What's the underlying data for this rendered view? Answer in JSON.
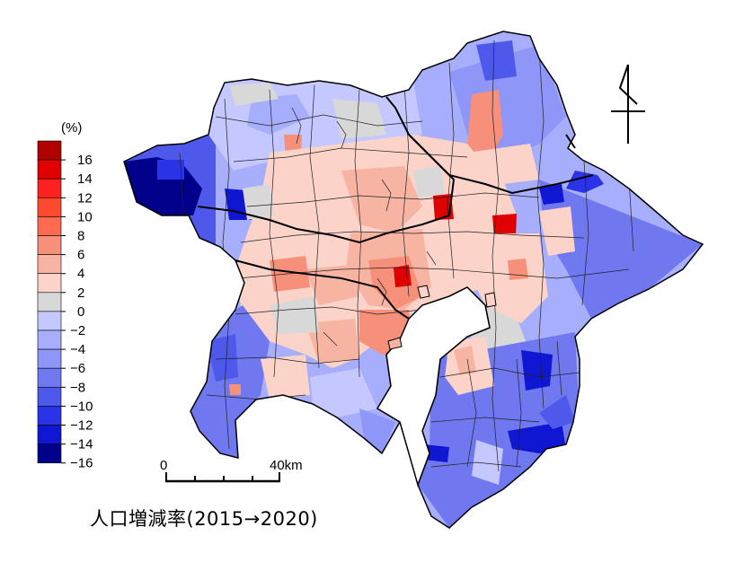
{
  "title": "人口増減率(2015→2020)",
  "legend": {
    "unit": "(%)",
    "ticks": [
      "16",
      "14",
      "12",
      "10",
      "8",
      "6",
      "4",
      "2",
      "0",
      "-2",
      "-4",
      "-6",
      "-8",
      "-10",
      "-12",
      "-14",
      "-16"
    ],
    "colors": [
      "#b00000",
      "#e00000",
      "#ff2020",
      "#ff4a30",
      "#ff6a50",
      "#f7907a",
      "#f8b4a3",
      "#fbd3c8",
      "#d8d8d8",
      "#c4c8ff",
      "#a7aefc",
      "#8e96f7",
      "#6f78ef",
      "#4e58ea",
      "#2a33e6",
      "#0f17d3",
      "#00008b"
    ]
  },
  "scale_bar": {
    "start_label": "0",
    "end_label": "40km"
  },
  "north_arrow": "north-arrow-icon",
  "map_regions": {
    "saitama_tokyo_inner": "increase",
    "chiba_periphery": "decrease",
    "kanagawa_west": "decrease",
    "boso_south": "decrease"
  }
}
